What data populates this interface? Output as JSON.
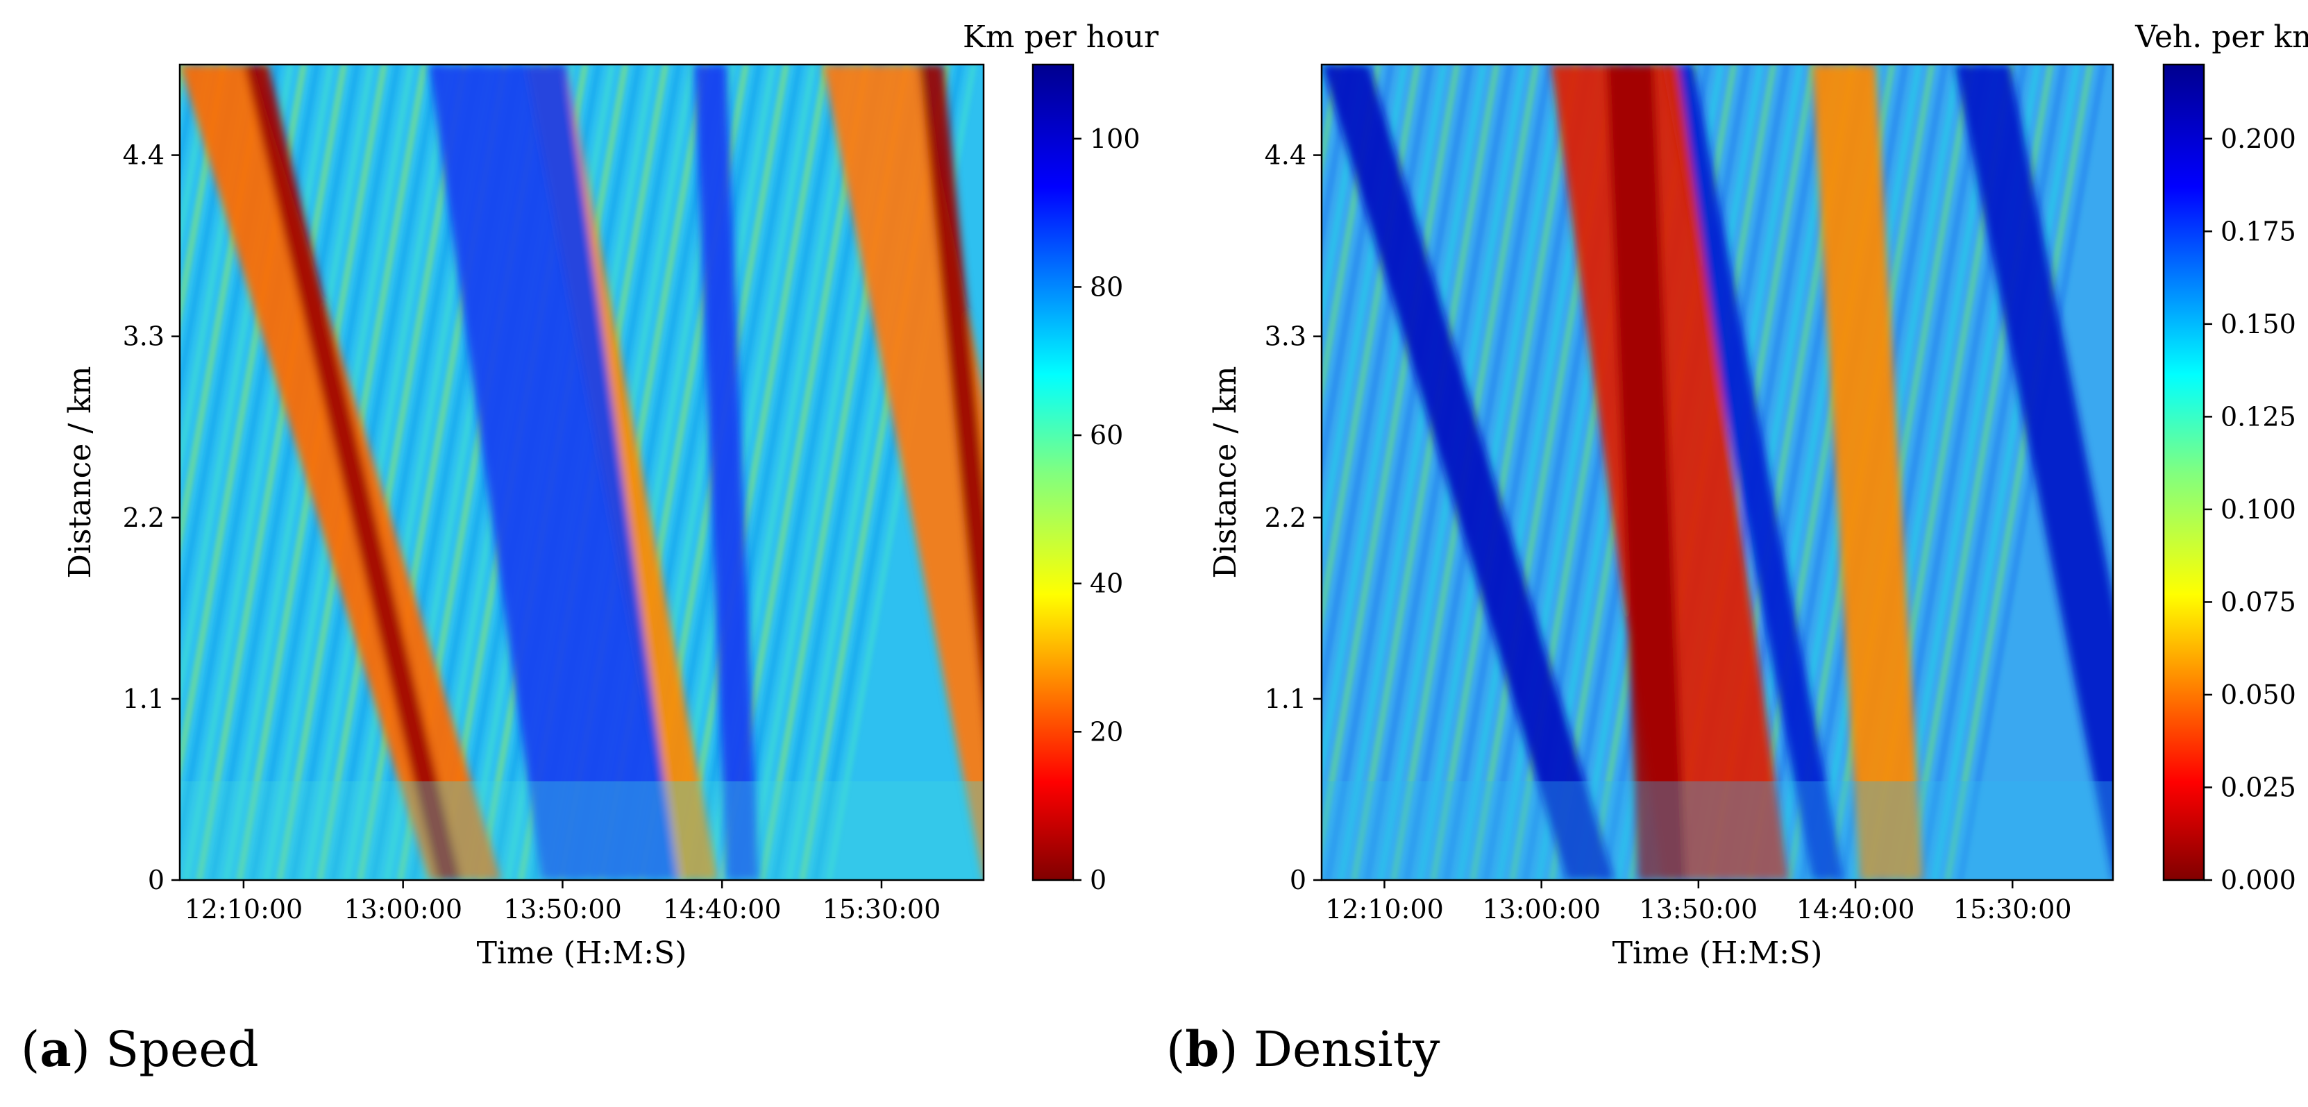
{
  "chart_data": [
    {
      "type": "heatmap",
      "panel": "a",
      "caption_letter": "a",
      "caption_text": "Speed",
      "xlabel": "Time (H:M:S)",
      "ylabel": "Distance / km",
      "x_ticks": [
        "12:10:00",
        "13:00:00",
        "13:50:00",
        "14:40:00",
        "15:30:00"
      ],
      "x_tick_minutes": [
        730,
        780,
        830,
        880,
        930
      ],
      "x_range_minutes": [
        710,
        962
      ],
      "y_ticks": [
        "0",
        "1.1",
        "2.2",
        "3.3",
        "4.4"
      ],
      "y_tick_values": [
        0,
        1.1,
        2.2,
        3.3,
        4.4
      ],
      "y_range": [
        0,
        4.95
      ],
      "colorbar_label": "Km per hour",
      "colorbar_ticks": [
        "0",
        "20",
        "40",
        "60",
        "80",
        "100"
      ],
      "colorbar_tick_values": [
        0,
        20,
        40,
        60,
        80,
        100
      ],
      "colorbar_range": [
        0,
        110
      ],
      "colormap": "jet_r"
    },
    {
      "type": "heatmap",
      "panel": "b",
      "caption_letter": "b",
      "caption_text": "Density",
      "xlabel": "Time (H:M:S)",
      "ylabel": "Distance / km",
      "x_ticks": [
        "12:10:00",
        "13:00:00",
        "13:50:00",
        "14:40:00",
        "15:30:00"
      ],
      "x_tick_minutes": [
        730,
        780,
        830,
        880,
        930
      ],
      "x_range_minutes": [
        710,
        962
      ],
      "y_ticks": [
        "0",
        "1.1",
        "2.2",
        "3.3",
        "4.4"
      ],
      "y_tick_values": [
        0,
        1.1,
        2.2,
        3.3,
        4.4
      ],
      "y_range": [
        0,
        4.95
      ],
      "colorbar_label": "Veh. per km",
      "colorbar_ticks": [
        "0.000",
        "0.025",
        "0.050",
        "0.075",
        "0.100",
        "0.125",
        "0.150",
        "0.175",
        "0.200"
      ],
      "colorbar_tick_values": [
        0,
        0.025,
        0.05,
        0.075,
        0.1,
        0.125,
        0.15,
        0.175,
        0.2
      ],
      "colorbar_range": [
        0,
        0.22
      ],
      "colormap": "jet_r"
    }
  ]
}
